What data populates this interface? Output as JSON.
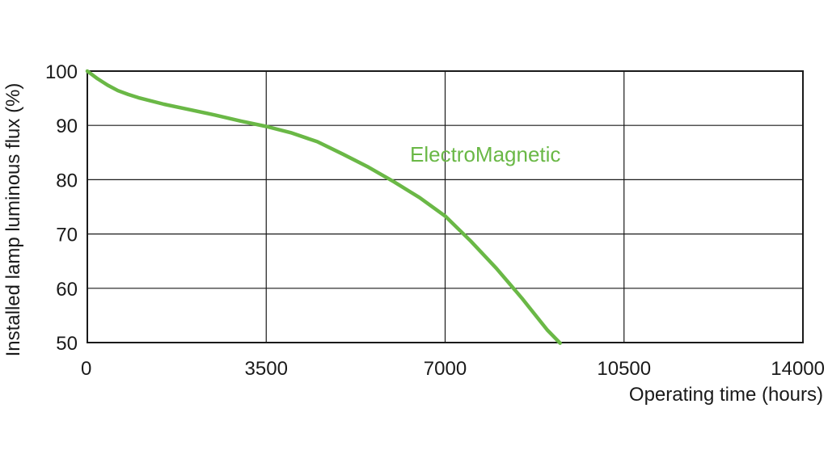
{
  "chart_data": {
    "type": "line",
    "xlabel": "Operating time (hours)",
    "ylabel": "Installed lamp luminous flux  (%)",
    "xlim": [
      0,
      14000
    ],
    "ylim": [
      50,
      100
    ],
    "x_ticks": [
      "0",
      "3500",
      "7000",
      "10500",
      "14000"
    ],
    "y_ticks": [
      "100",
      "90",
      "80",
      "70",
      "60",
      "50"
    ],
    "x_tick_values": [
      0,
      3500,
      7000,
      10500,
      14000
    ],
    "y_tick_values": [
      100,
      90,
      80,
      70,
      60,
      50
    ],
    "grid": true,
    "series": [
      {
        "name": "ElectroMagnetic",
        "color": "#6ab846",
        "x": [
          0,
          200,
          400,
          600,
          800,
          1000,
          1500,
          2000,
          2500,
          3000,
          3500,
          4000,
          4500,
          5000,
          5500,
          6000,
          6500,
          7000,
          7500,
          8000,
          8500,
          9000,
          9250
        ],
        "y": [
          100,
          98.6,
          97.4,
          96.4,
          95.7,
          95.1,
          93.9,
          92.9,
          91.9,
          90.8,
          89.8,
          88.6,
          87.0,
          84.7,
          82.3,
          79.6,
          76.7,
          73.3,
          68.7,
          63.7,
          58.2,
          52.3,
          49.9
        ]
      }
    ]
  }
}
